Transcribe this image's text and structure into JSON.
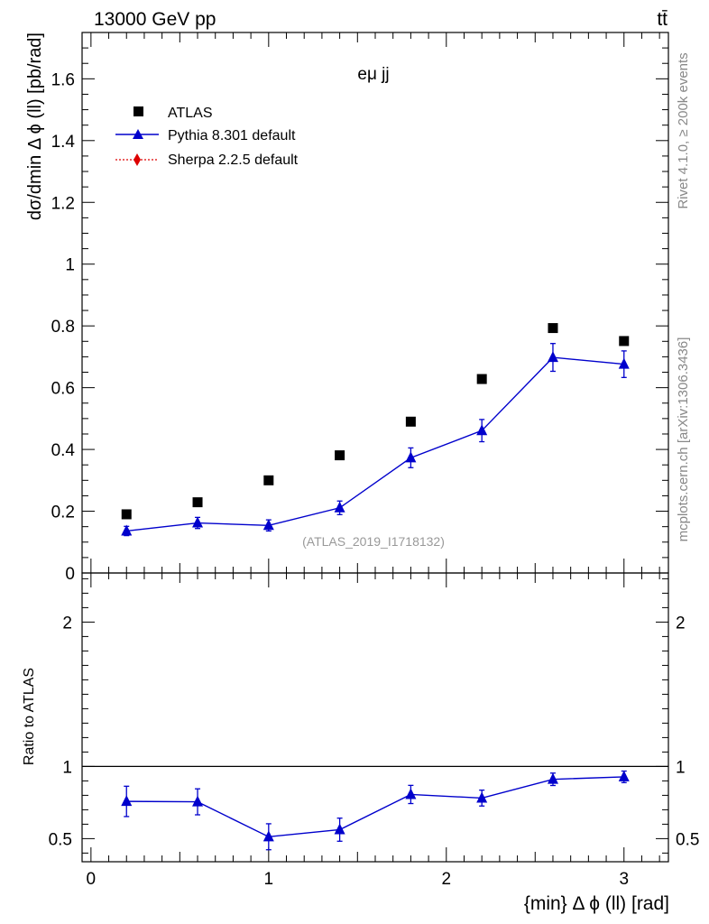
{
  "header": {
    "energy_label": "13000 GeV pp",
    "process_label": "tt̄"
  },
  "side_labels": {
    "rivet": "Rivet 4.1.0, ≥ 200k events",
    "mcplots": "mcplots.cern.ch [arXiv:1306.3436]"
  },
  "chart_data": [
    {
      "type": "scatter",
      "panel": "main",
      "title": "eμ jj",
      "analysis_tag": "(ATLAS_2019_I1718132)",
      "xlabel": "{min} Δ ϕ (ll) [rad]",
      "ylabel": "dσ/dmin Δ ϕ (ll) [pb/rad]",
      "xlim": [
        -0.05,
        3.25
      ],
      "ylim": [
        0,
        1.75
      ],
      "yticks": [
        0,
        0.2,
        0.4,
        0.6,
        0.8,
        1,
        1.2,
        1.4,
        1.6
      ],
      "ytick_labels": [
        "0",
        "0.2",
        "0.4",
        "0.6",
        "0.8",
        "1",
        "1.2",
        "1.4",
        "1.6"
      ],
      "x": [
        0.2,
        0.6,
        1.0,
        1.4,
        1.8,
        2.2,
        2.6,
        3.0
      ],
      "series": [
        {
          "name": "ATLAS",
          "color": "#000000",
          "marker": "square",
          "values": [
            0.19,
            0.229,
            0.3,
            0.381,
            0.49,
            0.628,
            0.793,
            0.751
          ]
        },
        {
          "name": "Pythia 8.301 default",
          "color": "#0000cc",
          "marker": "triangle",
          "line": true,
          "values": [
            0.136,
            0.162,
            0.154,
            0.211,
            0.373,
            0.461,
            0.698,
            0.676
          ],
          "errors": [
            0.015,
            0.018,
            0.018,
            0.022,
            0.032,
            0.036,
            0.045,
            0.043
          ]
        },
        {
          "name": "Sherpa 2.2.5 default",
          "color": "#dd0000",
          "marker": "diamond",
          "dotted": true,
          "values": []
        }
      ]
    },
    {
      "type": "line",
      "panel": "ratio",
      "ylabel": "Ratio to ATLAS",
      "xlim": [
        -0.05,
        3.25
      ],
      "ylim": [
        0.34,
        2.34
      ],
      "yticks": [
        0.5,
        1,
        2
      ],
      "ytick_labels": [
        "0.5",
        "1",
        "2"
      ],
      "xticks": [
        0,
        1,
        2,
        3
      ],
      "xtick_labels": [
        "0",
        "1",
        "2",
        "3"
      ],
      "reference": 1,
      "x": [
        0.2,
        0.6,
        1.0,
        1.4,
        1.8,
        2.2,
        2.6,
        3.0
      ],
      "series": [
        {
          "name": "Pythia 8.301 default",
          "color": "#0000cc",
          "values": [
            0.758,
            0.755,
            0.513,
            0.562,
            0.806,
            0.781,
            0.911,
            0.928
          ],
          "errors": [
            0.105,
            0.09,
            0.09,
            0.08,
            0.063,
            0.055,
            0.043,
            0.04
          ]
        }
      ]
    }
  ]
}
